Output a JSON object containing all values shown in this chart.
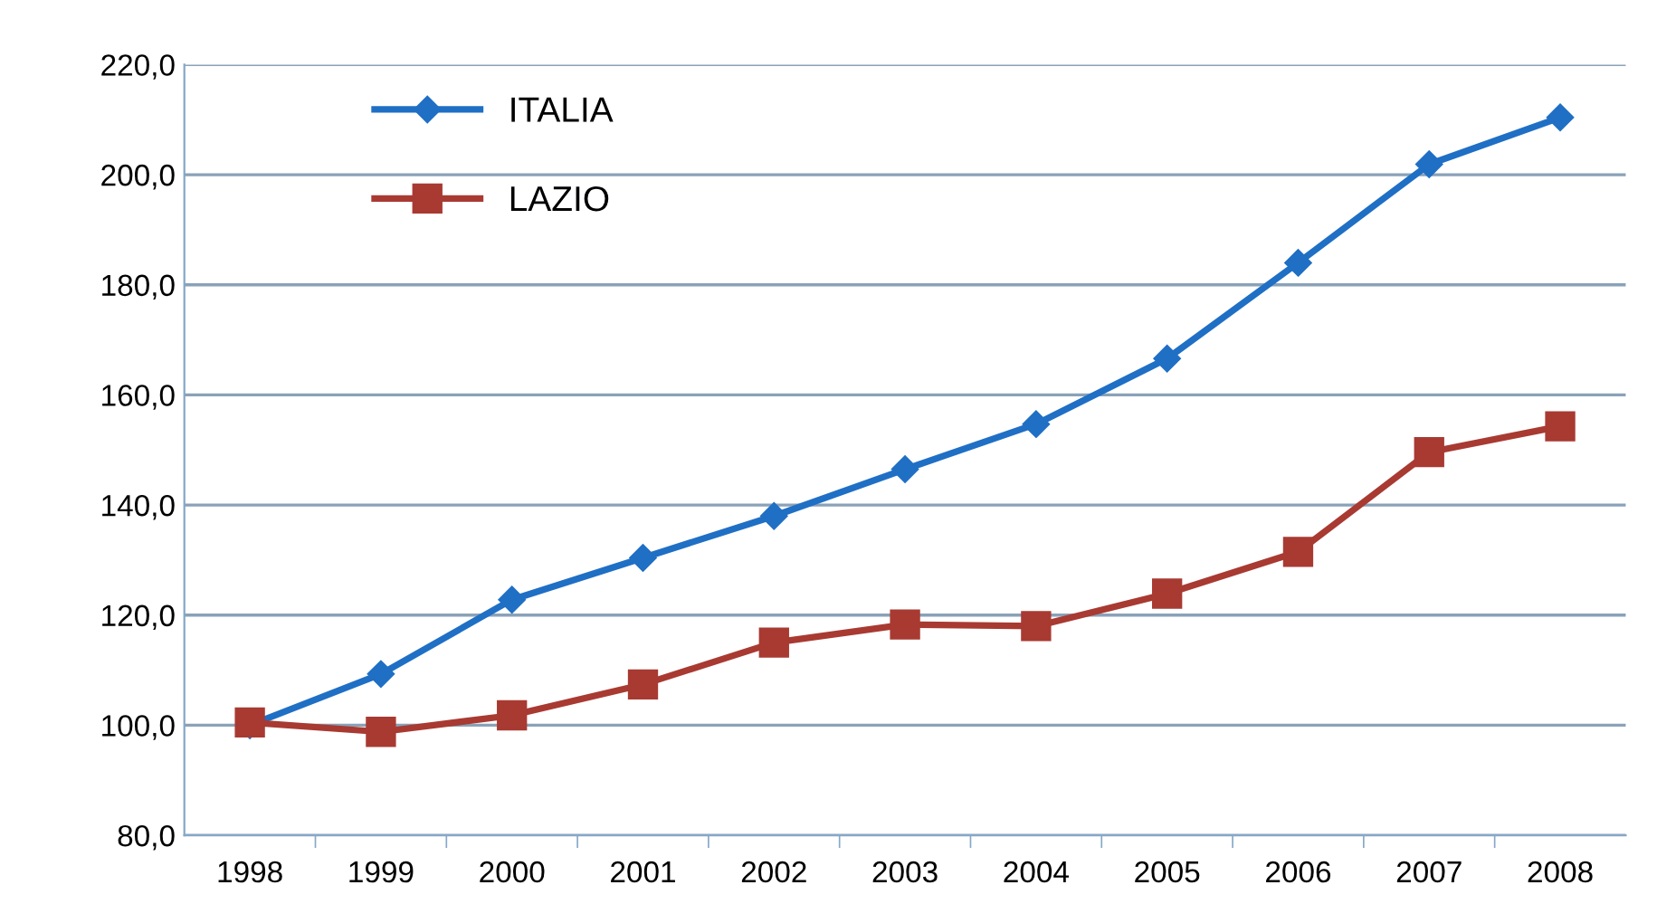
{
  "chart_data": {
    "type": "line",
    "categories": [
      "1998",
      "1999",
      "2000",
      "2001",
      "2002",
      "2003",
      "2004",
      "2005",
      "2006",
      "2007",
      "2008"
    ],
    "series": [
      {
        "name": "ITALIA",
        "color": "#1f6fc5",
        "marker": "diamond",
        "values": [
          100.0,
          109.3,
          122.8,
          130.4,
          138.0,
          146.5,
          154.7,
          166.6,
          184.0,
          201.9,
          210.4
        ]
      },
      {
        "name": "LAZIO",
        "color": "#a83a32",
        "marker": "square",
        "values": [
          100.5,
          98.8,
          101.8,
          107.4,
          115.0,
          118.3,
          118.0,
          123.9,
          131.5,
          149.6,
          154.3
        ]
      }
    ],
    "ylim": [
      80,
      220
    ],
    "yticks": [
      {
        "value": 80,
        "label": "80,0"
      },
      {
        "value": 100,
        "label": "100,0"
      },
      {
        "value": 120,
        "label": "120,0"
      },
      {
        "value": 140,
        "label": "140,0"
      },
      {
        "value": 160,
        "label": "160,0"
      },
      {
        "value": 180,
        "label": "180,0"
      },
      {
        "value": 200,
        "label": "200,0"
      },
      {
        "value": 220,
        "label": "220,0"
      }
    ],
    "grid": "y",
    "legend": "top left",
    "line_style": "solid"
  }
}
